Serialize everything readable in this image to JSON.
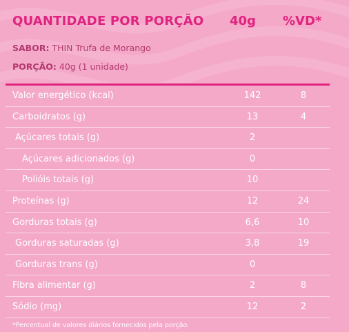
{
  "header": {
    "title": "QUANTIDADE POR PORÇÃO",
    "serving_col": "40g",
    "vd_col": "%VD*"
  },
  "meta": {
    "sabor_label": "SABOR:",
    "sabor_value": "THIN Trufa de Morango",
    "porcao_label": "PORÇÃO:",
    "porcao_value": "40g (1 unidade)"
  },
  "rows": [
    {
      "label": "Valor energético (kcal)",
      "amount": "142",
      "vd": "8",
      "indent": 0
    },
    {
      "label": "Carboidratos (g)",
      "amount": "13",
      "vd": "4",
      "indent": 0
    },
    {
      "label": "Açúcares totais (g)",
      "amount": "2",
      "vd": "",
      "indent": 1
    },
    {
      "label": "Açúcares adicionados (g)",
      "amount": "0",
      "vd": "",
      "indent": 2
    },
    {
      "label": "Polióis totais (g)",
      "amount": "10",
      "vd": "",
      "indent": 2
    },
    {
      "label": "Proteínas (g)",
      "amount": "12",
      "vd": "24",
      "indent": 0
    },
    {
      "label": "Gorduras totais (g)",
      "amount": "6,6",
      "vd": "10",
      "indent": 0
    },
    {
      "label": "Gorduras saturadas (g)",
      "amount": "3,8",
      "vd": "19",
      "indent": 1
    },
    {
      "label": "Gorduras trans (g)",
      "amount": "0",
      "vd": "",
      "indent": 1
    },
    {
      "label": "Fibra alimentar (g)",
      "amount": "2",
      "vd": "8",
      "indent": 0
    },
    {
      "label": "Sódio (mg)",
      "amount": "12",
      "vd": "2",
      "indent": 0
    }
  ],
  "footnote": "*Percentual de valores diários fornecidos pela porção.",
  "colors": {
    "background": "#f4a9c9",
    "accent": "#e0237f",
    "text": "#ffffff"
  }
}
